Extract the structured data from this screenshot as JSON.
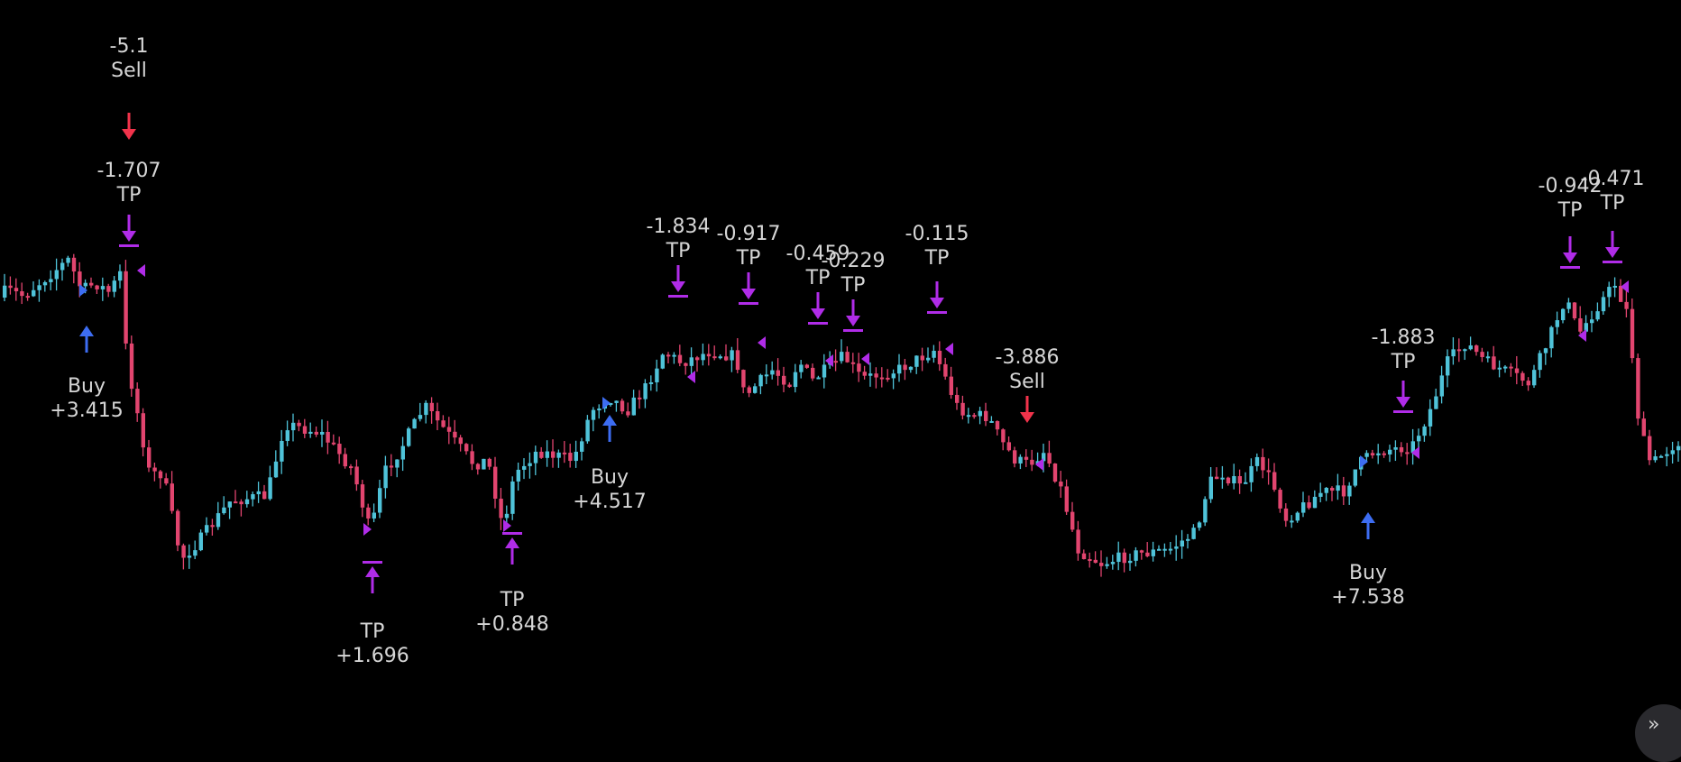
{
  "chart_data": {
    "type": "candlestick",
    "title": "",
    "colors": {
      "background": "#000000",
      "up": "#4fc3d9",
      "down": "#e2456f",
      "buy": "#3d6df2",
      "sell": "#f2334b",
      "tp": "#b02ce8",
      "label": "#d6d6d6"
    },
    "grid": false,
    "legend": "none",
    "candles": [],
    "price_path": [
      [
        0,
        330
      ],
      [
        12,
        322
      ],
      [
        30,
        328
      ],
      [
        55,
        308
      ],
      [
        80,
        288
      ],
      [
        95,
        322
      ],
      [
        110,
        314
      ],
      [
        127,
        325
      ],
      [
        137,
        298
      ],
      [
        145,
        400
      ],
      [
        170,
        525
      ],
      [
        185,
        525
      ],
      [
        205,
        620
      ],
      [
        225,
        600
      ],
      [
        260,
        555
      ],
      [
        300,
        550
      ],
      [
        320,
        470
      ],
      [
        360,
        480
      ],
      [
        395,
        520
      ],
      [
        415,
        590
      ],
      [
        430,
        525
      ],
      [
        450,
        495
      ],
      [
        475,
        450
      ],
      [
        500,
        480
      ],
      [
        530,
        515
      ],
      [
        545,
        510
      ],
      [
        562,
        585
      ],
      [
        575,
        525
      ],
      [
        600,
        500
      ],
      [
        640,
        510
      ],
      [
        660,
        455
      ],
      [
        680,
        440
      ],
      [
        700,
        455
      ],
      [
        720,
        430
      ],
      [
        740,
        390
      ],
      [
        760,
        402
      ],
      [
        790,
        390
      ],
      [
        820,
        395
      ],
      [
        830,
        440
      ],
      [
        840,
        430
      ],
      [
        860,
        410
      ],
      [
        880,
        425
      ],
      [
        890,
        400
      ],
      [
        905,
        422
      ],
      [
        920,
        410
      ],
      [
        940,
        395
      ],
      [
        960,
        420
      ],
      [
        1000,
        410
      ],
      [
        1040,
        388
      ],
      [
        1065,
        450
      ],
      [
        1080,
        460
      ],
      [
        1100,
        462
      ],
      [
        1115,
        490
      ],
      [
        1130,
        510
      ],
      [
        1145,
        515
      ],
      [
        1162,
        500
      ],
      [
        1180,
        540
      ],
      [
        1200,
        610
      ],
      [
        1225,
        625
      ],
      [
        1260,
        615
      ],
      [
        1300,
        610
      ],
      [
        1330,
        590
      ],
      [
        1345,
        535
      ],
      [
        1360,
        525
      ],
      [
        1380,
        540
      ],
      [
        1400,
        510
      ],
      [
        1415,
        535
      ],
      [
        1430,
        575
      ],
      [
        1445,
        565
      ],
      [
        1470,
        545
      ],
      [
        1495,
        545
      ],
      [
        1510,
        515
      ],
      [
        1530,
        500
      ],
      [
        1570,
        495
      ],
      [
        1590,
        455
      ],
      [
        1610,
        400
      ],
      [
        1630,
        380
      ],
      [
        1650,
        400
      ],
      [
        1680,
        415
      ],
      [
        1700,
        425
      ],
      [
        1720,
        380
      ],
      [
        1740,
        330
      ],
      [
        1755,
        370
      ],
      [
        1775,
        340
      ],
      [
        1795,
        315
      ],
      [
        1810,
        350
      ],
      [
        1822,
        475
      ],
      [
        1835,
        515
      ],
      [
        1864,
        490
      ]
    ],
    "signals": [
      {
        "kind": "sell",
        "value": "-5.1",
        "label": "Sell"
      },
      {
        "kind": "tp",
        "value": "-1.707",
        "label": "TP"
      },
      {
        "kind": "buy",
        "value": "+3.415",
        "label": "Buy"
      },
      {
        "kind": "tp",
        "value": "+1.696",
        "label": "TP"
      },
      {
        "kind": "tp",
        "value": "+0.848",
        "label": "TP"
      },
      {
        "kind": "buy",
        "value": "+4.517",
        "label": "Buy"
      },
      {
        "kind": "tp",
        "value": "-1.834",
        "label": "TP"
      },
      {
        "kind": "tp",
        "value": "-0.917",
        "label": "TP"
      },
      {
        "kind": "tp",
        "value": "-0.459",
        "label": "TP"
      },
      {
        "kind": "tp",
        "value": "-0.229",
        "label": "TP"
      },
      {
        "kind": "tp",
        "value": "-0.115",
        "label": "TP"
      },
      {
        "kind": "sell",
        "value": "-3.886",
        "label": "Sell"
      },
      {
        "kind": "tp",
        "value": "-1.883",
        "label": "TP"
      },
      {
        "kind": "buy",
        "value": "+7.538",
        "label": "Buy"
      },
      {
        "kind": "tp",
        "value": "-0.942",
        "label": "TP"
      },
      {
        "kind": "tp",
        "value": "-0.471",
        "label": "TP"
      }
    ]
  },
  "ui": {
    "collapse_icon_glyph": "»",
    "collapse_icon_name": "double-chevron-icon"
  }
}
